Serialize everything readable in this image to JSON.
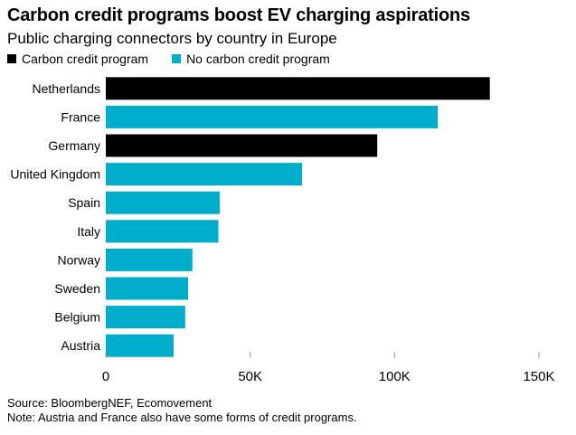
{
  "chart_data": {
    "type": "bar",
    "orientation": "horizontal",
    "title": "Carbon credit programs boost EV charging aspirations",
    "subtitle": "Public charging connectors by country in Europe",
    "categories": [
      "Netherlands",
      "France",
      "Germany",
      "United Kingdom",
      "Spain",
      "Italy",
      "Norway",
      "Sweden",
      "Belgium",
      "Austria"
    ],
    "values": [
      133000,
      115000,
      94000,
      68000,
      39500,
      39000,
      30000,
      28500,
      27500,
      23500
    ],
    "groups": [
      "Carbon credit program",
      "No carbon credit program",
      "Carbon credit program",
      "No carbon credit program",
      "No carbon credit program",
      "No carbon credit program",
      "No carbon credit program",
      "No carbon credit program",
      "No carbon credit program",
      "No carbon credit program"
    ],
    "legend": [
      {
        "label": "Carbon credit program",
        "color": "#000000"
      },
      {
        "label": "No carbon credit program",
        "color": "#00AECB"
      }
    ],
    "xlim": [
      0,
      150000
    ],
    "xticks": [
      0,
      50000,
      100000,
      150000
    ],
    "xtick_labels": [
      "0",
      "50K",
      "100K",
      "150K"
    ],
    "xlabel": "",
    "ylabel": "",
    "legend_position": "top-left",
    "grid": false
  },
  "footer": {
    "source": "Source: BloombergNEF, Ecomovement",
    "note": "Note: Austria and France also have some forms of credit programs."
  }
}
